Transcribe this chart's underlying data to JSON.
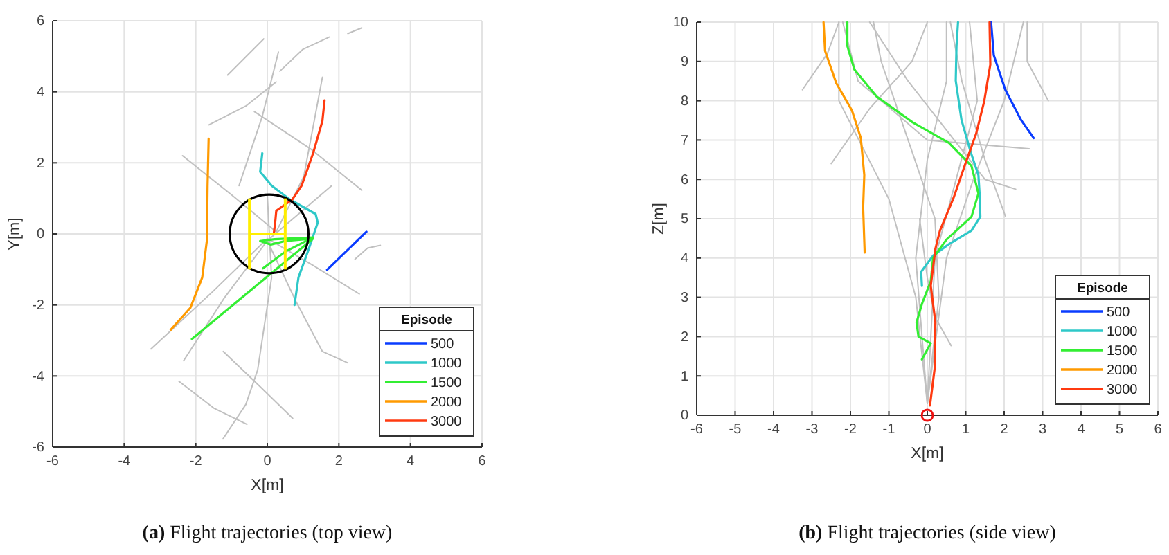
{
  "chart_data": [
    {
      "type": "line",
      "title": "(a) Flight trajectories (top view)",
      "xlabel": "X[m]",
      "ylabel": "Y[m]",
      "xlim": [
        -6,
        6
      ],
      "ylim": [
        -6,
        6
      ],
      "xticks": [
        -6,
        -4,
        -2,
        0,
        2,
        4,
        6
      ],
      "yticks": [
        -6,
        -4,
        -2,
        0,
        2,
        4,
        6
      ],
      "grid": true,
      "legend": "bottom right",
      "legend_title": "Episode",
      "series": [
        {
          "color": "#c0c0c0",
          "x": [
            -1.11,
            -0.1
          ],
          "values": [
            4.47,
            5.49
          ]
        },
        {
          "color": "#c0c0c0",
          "x": [
            -1.63,
            -0.6,
            0.25
          ],
          "values": [
            3.07,
            3.6,
            4.28
          ]
        },
        {
          "color": "#c0c0c0",
          "x": [
            0.35,
            1.0,
            1.73
          ],
          "values": [
            4.58,
            5.2,
            5.54
          ]
        },
        {
          "color": "#c0c0c0",
          "x": [
            2.25,
            2.64
          ],
          "values": [
            5.64,
            5.8
          ]
        },
        {
          "color": "#c0c0c0",
          "x": [
            -0.36,
            1.2,
            2.64
          ],
          "values": [
            3.44,
            2.4,
            1.23
          ]
        },
        {
          "color": "#c0c0c0",
          "x": [
            -2.37,
            -1.0,
            0.25
          ],
          "values": [
            2.2,
            1.1,
            0.06
          ]
        },
        {
          "color": "#c0c0c0",
          "x": [
            -3.25,
            -1.5,
            0,
            1.3,
            2.57
          ],
          "values": [
            -3.24,
            -1.6,
            -0.13,
            -0.9,
            -1.69
          ]
        },
        {
          "color": "#c0c0c0",
          "x": [
            -1.23,
            -0.2,
            0.71
          ],
          "values": [
            -3.31,
            -4.3,
            -5.19
          ]
        },
        {
          "color": "#c0c0c0",
          "x": [
            -2.47,
            -1.5,
            -0.57
          ],
          "values": [
            -4.15,
            -4.9,
            -5.36
          ]
        },
        {
          "color": "#c0c0c0",
          "x": [
            -1.24,
            -0.6,
            -0.27,
            0.12,
            0
          ],
          "values": [
            -5.77,
            -4.8,
            -3.83,
            -1.23,
            1.1
          ]
        },
        {
          "color": "#c0c0c0",
          "x": [
            0,
            0.8,
            1.54,
            2.25
          ],
          "values": [
            -0.19,
            -1.9,
            -3.31,
            -3.63
          ]
        },
        {
          "color": "#c0c0c0",
          "x": [
            2.45,
            2.8,
            3.16
          ],
          "values": [
            -0.71,
            -0.4,
            -0.32
          ]
        },
        {
          "color": "#c0c0c0",
          "x": [
            -0.79,
            -0.14,
            0.31
          ],
          "values": [
            1.36,
            3.31,
            5.12
          ]
        },
        {
          "color": "#c0c0c0",
          "x": [
            1.54,
            1.02,
            0.25
          ],
          "values": [
            4.41,
            1.62,
            0.06
          ]
        },
        {
          "color": "#c0c0c0",
          "x": [
            -2.34,
            -1.2,
            0,
            1.8
          ],
          "values": [
            -3.57,
            -1.8,
            -0.19,
            1.36
          ]
        },
        {
          "name": "500",
          "color": "#0a3cff",
          "x": [
            1.67,
            2.77
          ],
          "values": [
            -1.01,
            0.06
          ]
        },
        {
          "name": "1000",
          "color": "#2ec8c8",
          "x": [
            -0.14,
            -0.2,
            0.12,
            0.63,
            1.35,
            1.41,
            1.15,
            0.87,
            0.76
          ],
          "values": [
            2.27,
            1.75,
            1.36,
            0.97,
            0.56,
            0.32,
            -0.45,
            -1.23,
            -2.0
          ]
        },
        {
          "name": "1500",
          "color": "#33ee33",
          "x": [
            -2.11,
            1.28,
            0.5,
            0.1,
            -0.2,
            0.2,
            1.28,
            0.5,
            -0.12
          ],
          "values": [
            -2.96,
            -0.13,
            -0.2,
            -0.3,
            -0.2,
            -0.15,
            -0.1,
            -0.5,
            -0.97
          ]
        },
        {
          "name": "2000",
          "color": "#ff9a00",
          "x": [
            -1.64,
            -1.67,
            -1.69,
            -1.82,
            -2.15,
            -2.7
          ],
          "values": [
            2.68,
            1.36,
            -0.19,
            -1.23,
            -2.08,
            -2.7
          ]
        },
        {
          "name": "3000",
          "color": "#ff3a10",
          "x": [
            1.6,
            1.54,
            1.28,
            0.96,
            0.7,
            0.25,
            0.22,
            0.18
          ],
          "values": [
            3.76,
            3.18,
            2.27,
            1.36,
            0.97,
            0.65,
            0.32,
            0
          ]
        }
      ]
    },
    {
      "type": "line",
      "title": "(b) Flight trajectories (side view)",
      "xlabel": "X[m]",
      "ylabel": "Z[m]",
      "xlim": [
        -6,
        6
      ],
      "ylim": [
        0,
        10
      ],
      "xticks": [
        -6,
        -5,
        -4,
        -3,
        -2,
        -1,
        0,
        1,
        2,
        3,
        4,
        5,
        6
      ],
      "yticks": [
        0,
        1,
        2,
        3,
        4,
        5,
        6,
        7,
        8,
        9,
        10
      ],
      "grid": true,
      "legend": "bottom right",
      "legend_title": "Episode",
      "series": [
        {
          "color": "#c0c0c0",
          "x": [
            0,
            -0.3,
            -1,
            -2.3,
            -2.3
          ],
          "values": [
            0.3,
            3,
            5.5,
            8,
            10
          ]
        },
        {
          "color": "#c0c0c0",
          "x": [
            0,
            0.3,
            0.2,
            -0.5,
            -1.2,
            -1.4
          ],
          "values": [
            0.3,
            3,
            5,
            7,
            9,
            10
          ]
        },
        {
          "color": "#c0c0c0",
          "x": [
            0,
            0.5,
            1.2,
            2.0,
            2.5
          ],
          "values": [
            0.3,
            4,
            6,
            8,
            10
          ]
        },
        {
          "color": "#c0c0c0",
          "x": [
            0,
            -0.3,
            0,
            0.5,
            0.5
          ],
          "values": [
            0.3,
            4,
            6.5,
            8.5,
            10
          ]
        },
        {
          "color": "#c0c0c0",
          "x": [
            -3.25,
            -2.6,
            -2.3
          ],
          "values": [
            8.28,
            9.2,
            10
          ]
        },
        {
          "color": "#c0c0c0",
          "x": [
            -2.5,
            -1.5,
            -0.4,
            0
          ],
          "values": [
            6.4,
            7.8,
            9,
            10
          ]
        },
        {
          "color": "#c0c0c0",
          "x": [
            0.62,
            0.2,
            0,
            -0.2
          ],
          "values": [
            1.77,
            2.5,
            3.5,
            5
          ]
        },
        {
          "color": "#c0c0c0",
          "x": [
            -2.2,
            -1.8,
            0,
            2.65
          ],
          "values": [
            10,
            8.5,
            7,
            6.78
          ]
        },
        {
          "color": "#c0c0c0",
          "x": [
            -1.5,
            -0.5,
            1.5,
            2.3
          ],
          "values": [
            10,
            8.5,
            6,
            5.75
          ]
        },
        {
          "color": "#c0c0c0",
          "x": [
            0.6,
            0.9,
            1.5,
            2.03
          ],
          "values": [
            10,
            8.5,
            6.5,
            5.07
          ]
        },
        {
          "color": "#c0c0c0",
          "x": [
            2.6,
            2.6,
            3.15
          ],
          "values": [
            10,
            9,
            8.0
          ]
        },
        {
          "color": "#c0c0c0",
          "x": [
            1.1,
            1.3,
            0.2,
            0
          ],
          "values": [
            10,
            8,
            4,
            0.3
          ]
        },
        {
          "name": "500",
          "color": "#0a3cff",
          "x": [
            1.66,
            1.73,
            2.03,
            2.44,
            2.77
          ],
          "values": [
            10,
            9.16,
            8.28,
            7.51,
            7.05
          ]
        },
        {
          "name": "1000",
          "color": "#2ec8c8",
          "x": [
            0.8,
            0.76,
            0.74,
            0.89,
            1.13,
            1.33,
            1.36,
            1.38,
            1.15,
            0.56,
            0.15,
            -0.16,
            -0.14
          ],
          "values": [
            10,
            9.39,
            8.51,
            7.51,
            6.69,
            6.11,
            5.64,
            5.05,
            4.7,
            4.35,
            4.06,
            3.65,
            3.29
          ]
        },
        {
          "name": "1500",
          "color": "#33ee33",
          "x": [
            -2.08,
            -2.08,
            -1.9,
            -1.31,
            -0.38,
            0.56,
            1.15,
            1.33,
            1.15,
            0.5,
            0.15,
            0.09,
            -0.14,
            -0.28,
            -0.23,
            0.09,
            -0.14
          ],
          "values": [
            10,
            9.39,
            8.8,
            8.1,
            7.45,
            6.93,
            6.34,
            5.64,
            5.05,
            4.47,
            4.0,
            3.41,
            2.83,
            2.36,
            2.0,
            1.83,
            1.42
          ]
        },
        {
          "name": "2000",
          "color": "#ff9a00",
          "x": [
            -2.7,
            -2.66,
            -2.37,
            -1.96,
            -1.73,
            -1.64,
            -1.67,
            -1.63
          ],
          "values": [
            10,
            9.27,
            8.45,
            7.75,
            7.05,
            6.11,
            5.29,
            4.14
          ]
        },
        {
          "name": "3000",
          "color": "#ff3a10",
          "x": [
            1.62,
            1.64,
            1.48,
            1.27,
            0.97,
            0.68,
            0.33,
            0.21,
            0.09,
            0.21,
            0.19,
            0.07
          ],
          "values": [
            10,
            8.92,
            7.98,
            7.16,
            6.34,
            5.52,
            4.7,
            4.23,
            3.29,
            2.36,
            1.18,
            0.25
          ]
        }
      ]
    }
  ]
}
